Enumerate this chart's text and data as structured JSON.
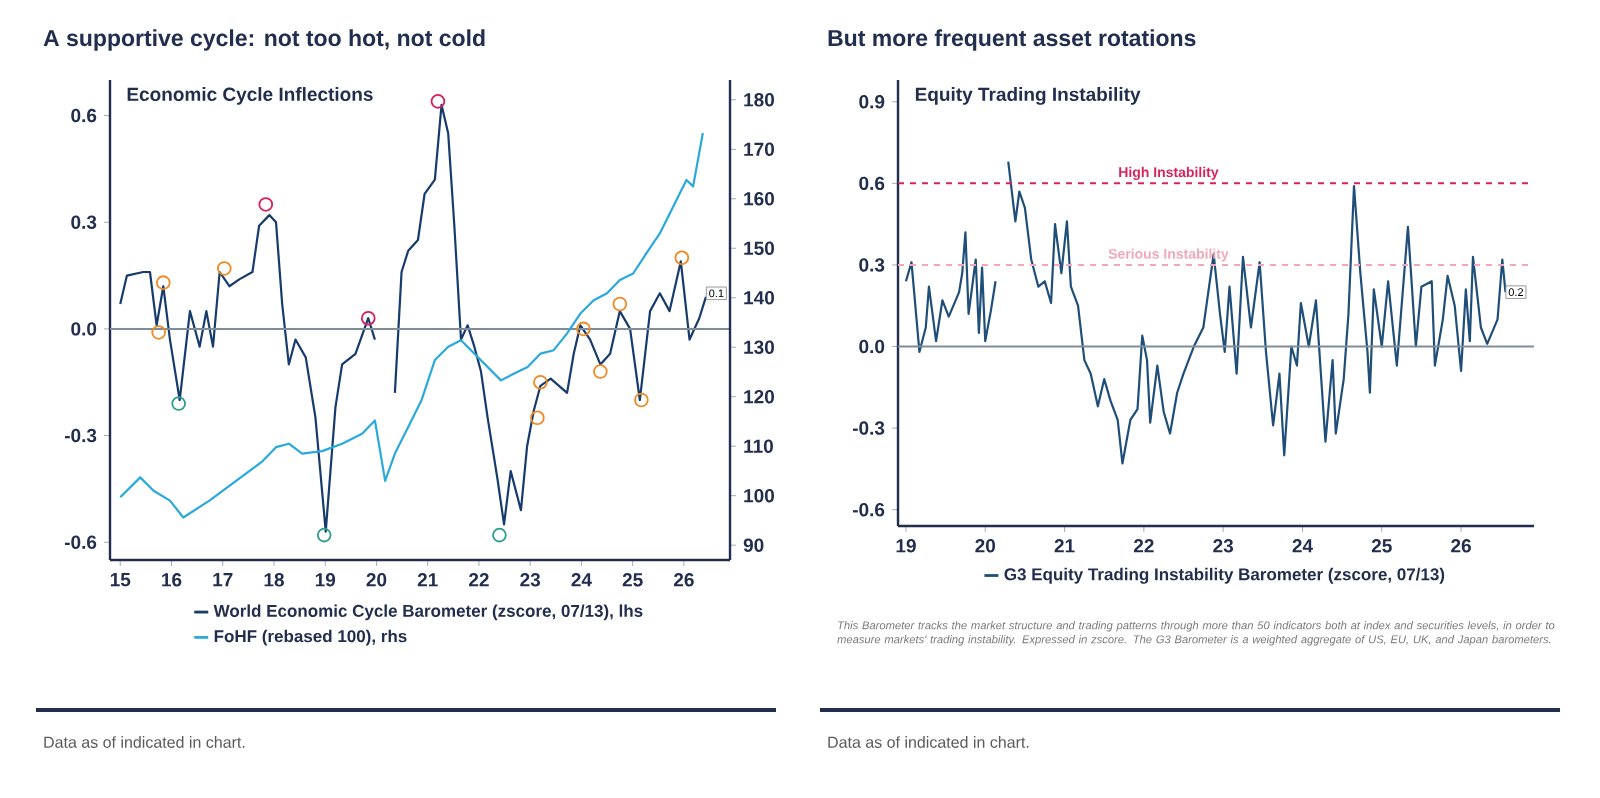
{
  "chart_data": [
    {
      "type": "line",
      "title": "A supportive cycle: not too hot, not cold",
      "subtitle": "Economic Cycle Inflections",
      "xlim": [
        14.8,
        26.9
      ],
      "xticks": [
        15,
        16,
        17,
        18,
        19,
        20,
        21,
        22,
        23,
        24,
        25,
        26
      ],
      "ylim": [
        -0.65,
        0.7
      ],
      "yticks": [
        -0.6,
        -0.3,
        {
          "value": 0,
          "label": "0.0"
        },
        0.3,
        0.6
      ],
      "y2lim": [
        87,
        184
      ],
      "y2ticks": [
        90,
        100,
        110,
        120,
        130,
        140,
        150,
        160,
        170,
        180
      ],
      "legend": "bottom",
      "ref_lines": [
        {
          "axis": "y",
          "value": 0,
          "color": "#7f8c99"
        }
      ],
      "annotations": [
        {
          "text": "0.1",
          "x": 26.43,
          "y": 0.1
        },
        "Data as of indicated in chart."
      ],
      "series": [
        {
          "name": "World Economic Cycle Barometer (zscore, 07/13), lhs",
          "color": "#173b6c",
          "x": [
            15.0,
            15.13,
            15.45,
            15.58,
            15.71,
            15.84,
            15.97,
            16.16,
            16.36,
            16.55,
            16.68,
            16.81,
            16.94,
            17.13,
            17.33,
            17.58,
            17.71,
            17.91,
            18.04,
            18.16,
            18.29,
            18.42,
            18.62,
            18.81,
            19.01,
            19.2,
            19.33,
            19.59,
            19.84,
            19.97,
            20.17,
            20.3,
            20.36,
            20.49,
            20.62,
            20.81,
            20.94,
            21.14,
            21.27,
            21.4,
            21.52,
            21.65,
            21.78,
            21.91,
            22.04,
            22.17,
            22.36,
            22.49,
            22.62,
            22.82,
            22.94,
            23.07,
            23.2,
            23.4,
            23.72,
            23.85,
            23.98,
            24.17,
            24.37,
            24.56,
            24.75,
            24.95,
            25.14,
            25.34,
            25.53,
            25.72,
            25.94,
            26.11,
            26.3,
            26.43
          ],
          "values": [
            0.07,
            0.15,
            0.16,
            0.16,
            0.01,
            0.12,
            -0.03,
            -0.2,
            0.05,
            -0.05,
            0.05,
            -0.05,
            0.16,
            0.12,
            0.14,
            0.16,
            0.29,
            0.32,
            0.3,
            0.07,
            -0.1,
            -0.03,
            -0.08,
            -0.25,
            -0.57,
            -0.22,
            -0.1,
            -0.07,
            0.03,
            -0.03,
            null,
            null,
            -0.18,
            0.16,
            0.22,
            0.25,
            0.38,
            0.42,
            0.63,
            0.55,
            0.29,
            -0.03,
            0.01,
            -0.05,
            -0.12,
            -0.25,
            -0.42,
            -0.55,
            -0.4,
            -0.51,
            -0.33,
            -0.23,
            -0.16,
            -0.14,
            -0.18,
            -0.07,
            0.01,
            -0.03,
            -0.1,
            -0.07,
            0.05,
            0.0,
            -0.2,
            0.05,
            0.1,
            0.05,
            0.19,
            -0.03,
            0.03,
            0.09
          ]
        },
        {
          "name": "FoHF (rebased 100), rhs",
          "color": "#2aa9dc",
          "axis": "y2",
          "x": [
            15.0,
            15.39,
            15.65,
            15.97,
            16.23,
            16.74,
            17.26,
            17.78,
            18.04,
            18.29,
            18.55,
            18.94,
            19.33,
            19.72,
            19.97,
            20.17,
            20.36,
            20.62,
            20.88,
            21.14,
            21.4,
            21.65,
            21.91,
            22.17,
            22.43,
            22.69,
            22.95,
            23.2,
            23.46,
            23.72,
            23.98,
            24.24,
            24.5,
            24.75,
            25.01,
            25.27,
            25.53,
            25.79,
            26.05,
            26.18,
            26.37
          ],
          "values": [
            99.7,
            103.7,
            101,
            99,
            95.6,
            99,
            103,
            107,
            109.8,
            110.5,
            108.5,
            109,
            110.5,
            112.5,
            115.2,
            103,
            108.5,
            113.9,
            119.3,
            127.4,
            130.1,
            131.4,
            128.7,
            126,
            123.3,
            124.7,
            126,
            128.7,
            129.4,
            132.8,
            136.8,
            139.5,
            140.9,
            143.6,
            144.9,
            149,
            153,
            158.4,
            163.8,
            162.5,
            173.3
          ]
        },
        {
          "type": "scatter",
          "marker": "circle",
          "color": "#d81e5b",
          "x": [
            17.84,
            19.84,
            21.2
          ],
          "values": [
            0.35,
            0.03,
            0.64
          ]
        },
        {
          "type": "scatter",
          "marker": "circle",
          "color": "#2a9d8f",
          "x": [
            16.14,
            18.98,
            22.4
          ],
          "values": [
            -0.21,
            -0.58,
            -0.58
          ]
        },
        {
          "type": "scatter",
          "marker": "circle",
          "color": "#f08a24",
          "x": [
            15.75,
            15.84,
            17.03,
            23.14,
            23.2,
            24.04,
            24.37,
            24.75,
            25.17,
            25.96
          ],
          "values": [
            -0.01,
            0.13,
            0.17,
            -0.25,
            -0.15,
            0.0,
            -0.12,
            0.07,
            -0.2,
            0.2
          ]
        }
      ]
    },
    {
      "type": "line",
      "title": "But more frequent asset rotations",
      "subtitle": "Equity Trading Instability",
      "xlim": [
        18.9,
        26.92
      ],
      "xticks": [
        19,
        20,
        21,
        22,
        23,
        24,
        25,
        26
      ],
      "ylim": [
        -0.66,
        0.98
      ],
      "yticks": [
        -0.6,
        -0.3,
        {
          "value": 0,
          "label": "0.0"
        },
        0.3,
        0.6,
        0.9
      ],
      "legend": "bottom",
      "ref_lines": [
        {
          "axis": "y",
          "value": 0,
          "color": "#7f8c99"
        },
        {
          "axis": "y",
          "value": 0.6,
          "label": "High Instability",
          "color": "#d6245a",
          "line_style": "dashed"
        },
        {
          "axis": "y",
          "value": 0.3,
          "label": "Serious Instability",
          "color": "#f2a7b8",
          "line_style": "dashed"
        }
      ],
      "annotations": [
        {
          "text": "0.2",
          "x": 26.56,
          "y": 0.2
        },
        "This Barometer tracks the market structure and trading patterns through more than 50 indicators both at index and securities levels, in order to measure markets' trading instability. Expressed in zscore. The G3 Barometer is a weighted aggregate of US, EU, UK, and Japan barometers.",
        "Data as of indicated in chart."
      ],
      "series": [
        {
          "name": "G3 Equity Trading Instability Barometer (zscore, 07/13)",
          "color": "#1f4e79",
          "x": [
            19.0,
            19.07,
            19.17,
            19.25,
            19.29,
            19.38,
            19.46,
            19.54,
            19.67,
            19.71,
            19.75,
            19.79,
            19.88,
            19.92,
            19.96,
            20.0,
            20.07,
            20.13,
            20.18,
            20.25,
            20.29,
            20.38,
            20.43,
            20.5,
            20.58,
            20.67,
            20.75,
            20.83,
            20.88,
            20.96,
            21.03,
            21.08,
            21.17,
            21.25,
            21.33,
            21.42,
            21.5,
            21.58,
            21.67,
            21.73,
            21.83,
            21.92,
            21.98,
            22.04,
            22.08,
            22.17,
            22.25,
            22.33,
            22.42,
            22.5,
            22.63,
            22.75,
            22.88,
            22.96,
            23.02,
            23.08,
            23.17,
            23.25,
            23.35,
            23.46,
            23.54,
            23.63,
            23.71,
            23.77,
            23.86,
            23.93,
            23.98,
            24.08,
            24.17,
            24.29,
            24.38,
            24.42,
            24.52,
            24.58,
            24.65,
            24.73,
            24.82,
            24.85,
            24.9,
            25.0,
            25.08,
            25.19,
            25.33,
            25.43,
            25.5,
            25.63,
            25.67,
            25.77,
            25.83,
            25.92,
            26.0,
            26.06,
            26.11,
            26.15,
            26.25,
            26.33,
            26.46,
            26.52,
            26.56
          ],
          "values": [
            0.24,
            0.31,
            -0.02,
            0.07,
            0.22,
            0.02,
            0.17,
            0.11,
            0.2,
            0.27,
            0.42,
            0.12,
            0.32,
            0.05,
            0.29,
            0.02,
            0.13,
            0.24,
            null,
            null,
            0.68,
            0.46,
            0.57,
            0.51,
            0.32,
            0.22,
            0.24,
            0.16,
            0.45,
            0.27,
            0.46,
            0.22,
            0.15,
            -0.05,
            -0.1,
            -0.22,
            -0.12,
            -0.2,
            -0.27,
            -0.43,
            -0.27,
            -0.23,
            0.04,
            -0.05,
            -0.28,
            -0.07,
            -0.24,
            -0.32,
            -0.17,
            -0.1,
            0.0,
            0.07,
            0.34,
            0.12,
            -0.02,
            0.22,
            -0.1,
            0.33,
            0.07,
            0.31,
            -0.02,
            -0.29,
            -0.1,
            -0.4,
            0.0,
            -0.07,
            0.16,
            0.0,
            0.17,
            -0.35,
            -0.05,
            -0.32,
            -0.12,
            0.12,
            0.59,
            0.27,
            -0.02,
            -0.17,
            0.21,
            0.0,
            0.24,
            -0.07,
            0.44,
            0.0,
            0.22,
            0.24,
            -0.07,
            0.1,
            0.26,
            0.15,
            -0.09,
            0.21,
            0.02,
            0.33,
            0.07,
            0.01,
            0.1,
            0.32,
            0.2
          ]
        }
      ]
    }
  ]
}
